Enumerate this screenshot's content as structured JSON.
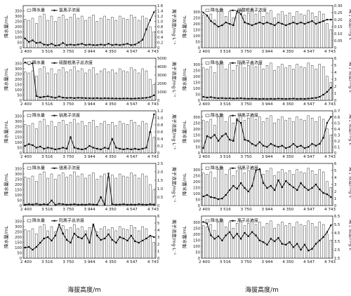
{
  "figure": {
    "xlabel": "海拔高度/m",
    "xticks": [
      "2 400",
      "3 516",
      "3 750",
      "3 944",
      "4 350",
      "4 547",
      "4 743"
    ],
    "legend_bar": "降水量",
    "ylabel_left": "降水量/mL",
    "ylabel_right": "离子浓度/mg·L⁻¹"
  },
  "chart_data": [
    {
      "type": "bar+line",
      "legend_line": "氯离子浓度",
      "ylim_left": [
        0,
        400
      ],
      "yticks_left": [
        "0",
        "50",
        "100",
        "150",
        "200",
        "250",
        "300",
        "350"
      ],
      "ylim_right": [
        0,
        1.6
      ],
      "yticks_right": [
        "0",
        "0.2",
        "0.4",
        "0.6",
        "0.8",
        "1.0",
        "1.2",
        "1.4",
        "1.6"
      ],
      "line_values": [
        0.35,
        0.22,
        0.28,
        0.18,
        0.2,
        0.12,
        0.1,
        0.15,
        0.08,
        0.1,
        0.18,
        0.1,
        0.12,
        0.1,
        0.12,
        0.15,
        0.1,
        0.12,
        0.1,
        0.1,
        0.12,
        0.1,
        0.15,
        0.1,
        0.12,
        0.1,
        0.12,
        0.15,
        0.1,
        0.12,
        0.2,
        0.3,
        0.7,
        1.05,
        1.35
      ]
    },
    {
      "type": "bar+line",
      "legend_line": "硝酸根离子浓度",
      "ylim_left": [
        0,
        350
      ],
      "yticks_left": [
        "0",
        "50",
        "100",
        "150",
        "200",
        "250",
        "300"
      ],
      "ylim_right": [
        0,
        0.3
      ],
      "yticks_right": [
        "0",
        "0.05",
        "0.10",
        "0.15",
        "0.20",
        "0.25",
        "0.30"
      ],
      "line_values": [
        0.25,
        0.23,
        0.19,
        0.17,
        0.15,
        0.16,
        0.18,
        0.17,
        0.16,
        0.26,
        0.24,
        0.18,
        0.17,
        0.16,
        0.17,
        0.18,
        0.17,
        0.18,
        0.17,
        0.16,
        0.18,
        0.17,
        0.16,
        0.17,
        0.18,
        0.17,
        0.18,
        0.17,
        0.18,
        0.19,
        0.17,
        0.18,
        0.19,
        0.2,
        0.2
      ]
    },
    {
      "type": "bar+line",
      "legend_line": "硫酸根离子总浓度",
      "ylim_left": [
        0,
        400
      ],
      "yticks_left": [
        "0",
        "50",
        "100",
        "150",
        "200",
        "250",
        "300",
        "350"
      ],
      "ylim_right": [
        0,
        5000
      ],
      "yticks_right": [
        "0",
        "1000",
        "2000",
        "3000",
        "4000",
        "5000"
      ],
      "line_values": [
        4500,
        4300,
        4400,
        500,
        350,
        420,
        480,
        380,
        300,
        450,
        320,
        280,
        300,
        260,
        300,
        280,
        260,
        250,
        240,
        260,
        230,
        250,
        240,
        230,
        220,
        210,
        220,
        230,
        200,
        220,
        240,
        260,
        300,
        380,
        600
      ]
    },
    {
      "type": "bar+line",
      "legend_line": "阴离子总浓度",
      "ylim_left": [
        0,
        350
      ],
      "yticks_left": [
        "0",
        "50",
        "100",
        "150",
        "200",
        "250",
        "300"
      ],
      "ylim_right": [
        0,
        6
      ],
      "yticks_right": [
        "0",
        "1",
        "2",
        "3",
        "4",
        "5",
        "6"
      ],
      "line_values": [
        0.5,
        0.4,
        0.45,
        0.35,
        0.3,
        0.32,
        0.28,
        0.3,
        0.25,
        0.28,
        0.3,
        0.25,
        0.22,
        0.25,
        0.22,
        0.2,
        0.22,
        0.2,
        0.22,
        0.2,
        0.25,
        0.22,
        0.2,
        0.22,
        0.25,
        0.2,
        0.22,
        0.2,
        0.25,
        0.3,
        0.35,
        0.5,
        0.8,
        1.2,
        1.8
      ]
    },
    {
      "type": "bar+line",
      "legend_line": "钠离子浓度",
      "ylim_left": [
        0,
        400
      ],
      "yticks_left": [
        "0",
        "50",
        "100",
        "150",
        "200",
        "250",
        "300",
        "350"
      ],
      "ylim_right": [
        0,
        1.2
      ],
      "yticks_right": [
        "0",
        "0.2",
        "0.4",
        "0.6",
        "0.8",
        "1.0",
        "1.2"
      ],
      "line_values": [
        0.2,
        0.25,
        0.22,
        0.15,
        0.18,
        0.12,
        0.15,
        0.13,
        0.1,
        0.12,
        0.15,
        0.12,
        0.45,
        0.15,
        0.12,
        0.1,
        0.12,
        0.2,
        0.15,
        0.12,
        0.1,
        0.15,
        0.12,
        0.4,
        0.15,
        0.12,
        0.1,
        0.12,
        0.1,
        0.12,
        0.1,
        0.12,
        0.15,
        0.6,
        1.1
      ]
    },
    {
      "type": "bar+line",
      "legend_line": "钾离子浓度",
      "ylim_left": [
        0,
        350
      ],
      "yticks_left": [
        "0",
        "50",
        "100",
        "150",
        "200",
        "250",
        "300"
      ],
      "ylim_right": [
        0,
        0.7
      ],
      "yticks_right": [
        "0",
        "0.1",
        "0.2",
        "0.3",
        "0.4",
        "0.5",
        "0.6",
        "0.7"
      ],
      "line_values": [
        0.08,
        0.28,
        0.25,
        0.3,
        0.2,
        0.28,
        0.32,
        0.22,
        0.2,
        0.55,
        0.5,
        0.22,
        0.2,
        0.15,
        0.12,
        0.18,
        0.12,
        0.1,
        0.15,
        0.12,
        0.1,
        0.12,
        0.08,
        0.1,
        0.15,
        0.1,
        0.12,
        0.08,
        0.1,
        0.15,
        0.12,
        0.15,
        0.25,
        0.5,
        0.6
      ]
    },
    {
      "type": "bar+line",
      "legend_line": "镁离子浓度",
      "ylim_left": [
        0,
        400
      ],
      "yticks_left": [
        "0",
        "50",
        "100",
        "150",
        "200",
        "250",
        "300",
        "350"
      ],
      "ylim_right": [
        0,
        2.5
      ],
      "yticks_right": [
        "0",
        "0.5",
        "1.0",
        "1.5",
        "2.0",
        "2.5"
      ],
      "line_values": [
        0.05,
        0.08,
        0.06,
        0.1,
        0.05,
        0.08,
        0.06,
        0.3,
        0.05,
        0.1,
        0.08,
        0.05,
        0.06,
        0.08,
        0.05,
        0.06,
        0.05,
        0.08,
        0.06,
        0.05,
        0.5,
        0.06,
        1.9,
        0.08,
        0.05,
        0.06,
        0.08,
        0.05,
        0.06,
        0.05,
        0.08,
        0.06,
        0.05,
        0.08,
        0.06
      ]
    },
    {
      "type": "bar+line",
      "legend_line": "钙离子浓度",
      "ylim_left": [
        0,
        350
      ],
      "yticks_left": [
        "0",
        "50",
        "100",
        "150",
        "200",
        "250",
        "300"
      ],
      "ylim_right": [
        0,
        6
      ],
      "yticks_right": [
        "0",
        "1",
        "2",
        "3",
        "4",
        "5",
        "6"
      ],
      "line_values": [
        1.3,
        1.5,
        1.2,
        1.1,
        0.9,
        1.0,
        1.5,
        2.2,
        2.8,
        2.4,
        3.2,
        2.5,
        2.0,
        2.8,
        5.0,
        5.2,
        3.2,
        2.5,
        2.8,
        2.2,
        3.6,
        2.6,
        3.5,
        3.0,
        2.6,
        2.2,
        3.2,
        2.6,
        2.2,
        2.5,
        3.0,
        2.3,
        1.8,
        1.6,
        1.2
      ]
    },
    {
      "type": "bar+line",
      "legend_line": "阳离子总浓度",
      "ylim_left": [
        0,
        400
      ],
      "yticks_left": [
        "0",
        "50",
        "100",
        "150",
        "200",
        "250",
        "300",
        "350"
      ],
      "ylim_right": [
        0,
        6
      ],
      "yticks_right": [
        "0",
        "1",
        "2",
        "3",
        "4",
        "5",
        "6"
      ],
      "line_values": [
        1.5,
        1.6,
        1.2,
        1.6,
        2.2,
        2.8,
        3.0,
        2.5,
        3.2,
        4.8,
        3.5,
        2.6,
        2.2,
        3.5,
        3.0,
        2.8,
        3.4,
        2.2,
        4.8,
        3.2,
        2.6,
        2.8,
        3.4,
        2.6,
        2.2,
        3.0,
        2.8,
        2.5,
        3.2,
        2.4,
        2.2,
        2.5,
        2.8,
        3.2,
        3.0
      ]
    },
    {
      "type": "bar+line",
      "legend_line": "离子总浓度",
      "ylim_left": [
        0,
        350
      ],
      "yticks_left": [
        "0",
        "50",
        "100",
        "150",
        "200",
        "250",
        "300"
      ],
      "ylim_right": [
        1.5,
        6.5
      ],
      "yticks_right": [
        "1.5",
        "2.5",
        "3.5",
        "4.5",
        "5.5",
        "6.5"
      ],
      "line_values": [
        5.8,
        5.6,
        4.2,
        3.8,
        4.1,
        3.6,
        4.2,
        4.6,
        3.9,
        4.4,
        3.8,
        4.5,
        4.1,
        4.6,
        4.2,
        3.6,
        3.4,
        3.1,
        3.8,
        3.5,
        3.9,
        3.2,
        3.1,
        3.4,
        2.8,
        3.2,
        2.5,
        3.1,
        2.4,
        2.6,
        3.2,
        3.6,
        4.0,
        4.6,
        5.4
      ]
    }
  ],
  "precipitation_values": [
    270,
    260,
    280,
    230,
    300,
    320,
    260,
    300,
    250,
    290,
    310,
    270,
    290,
    320,
    280,
    300,
    260,
    290,
    310,
    250,
    280,
    300,
    270,
    290,
    260,
    300,
    280,
    270,
    310,
    290,
    260,
    300,
    280,
    200,
    150
  ]
}
